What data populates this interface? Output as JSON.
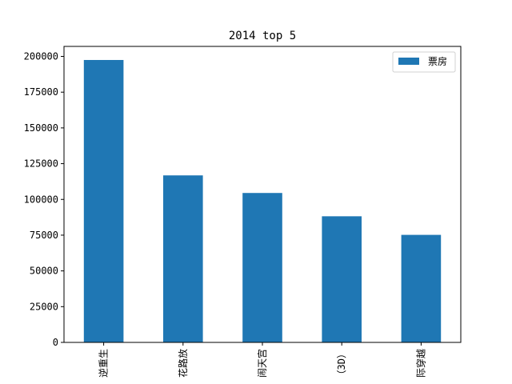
{
  "chart_data": {
    "type": "bar",
    "title": "2014 top 5",
    "categories": [
      "逆重生",
      "花路放",
      "闹天宫",
      "（3D）",
      "际穿越"
    ],
    "series": [
      {
        "name": "票房",
        "values": [
          197500,
          116800,
          104500,
          88200,
          75200
        ],
        "color": "#1f77b4"
      }
    ],
    "yticks": [
      "0",
      "25000",
      "50000",
      "75000",
      "100000",
      "125000",
      "150000",
      "175000",
      "200000"
    ],
    "ylim": [
      0,
      207000
    ],
    "grid": false,
    "legend_position": "top-right"
  }
}
